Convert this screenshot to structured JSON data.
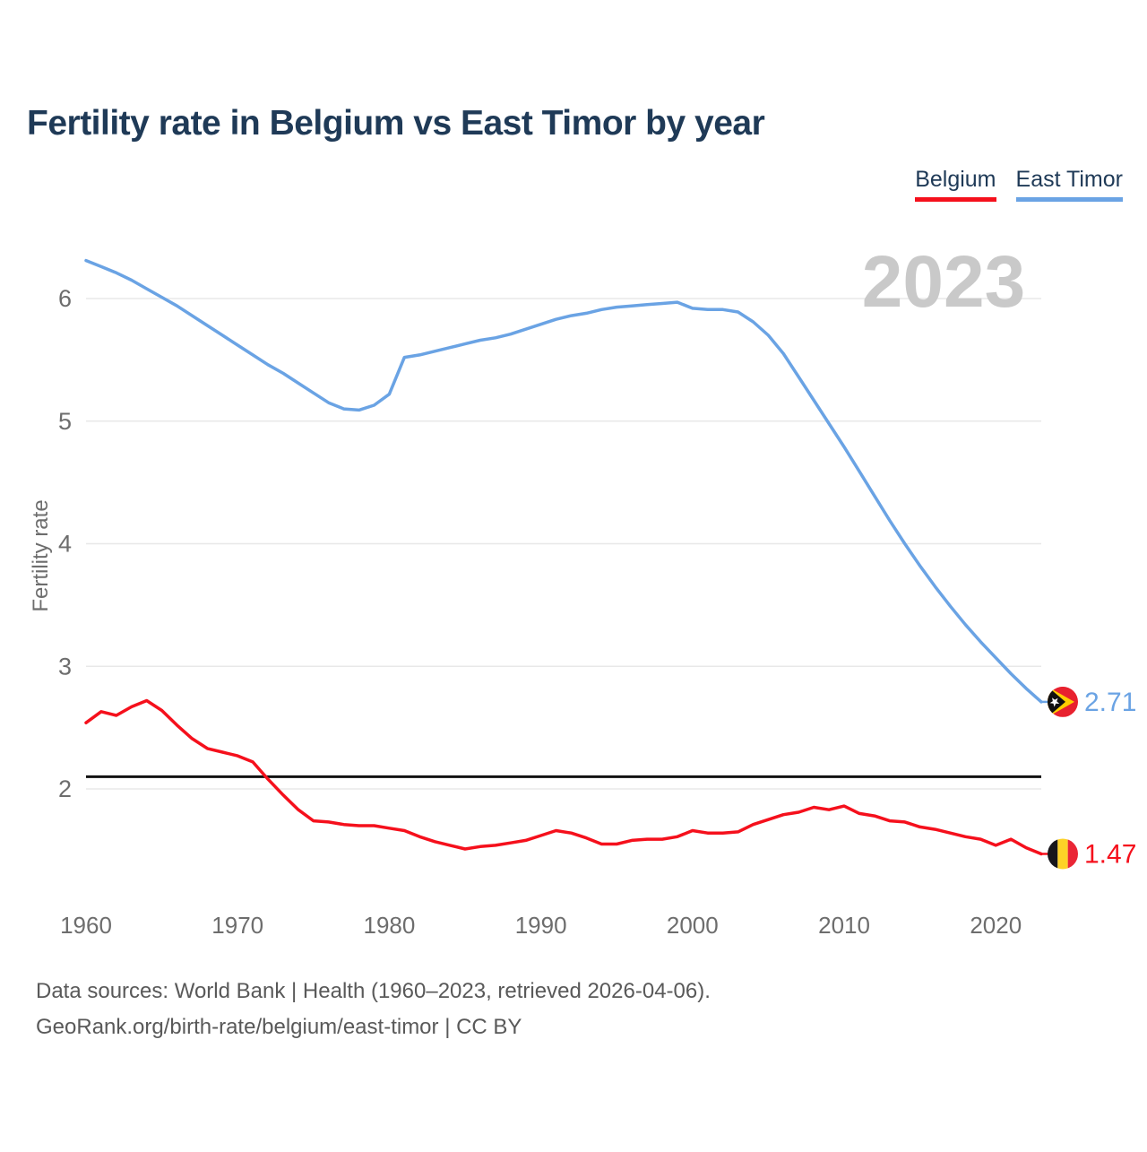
{
  "header": {
    "title": "Fertility rate in Belgium vs East Timor by year",
    "title_color": "#1f3a57"
  },
  "legend": {
    "items": [
      {
        "label": "Belgium",
        "color": "#f5101c"
      },
      {
        "label": "East Timor",
        "color": "#6aa3e4"
      }
    ]
  },
  "watermark": "2023",
  "chart_data": {
    "type": "line",
    "title": "Fertility rate in Belgium vs East Timor by year",
    "xlabel": "",
    "ylabel": "Fertility rate",
    "xlim": [
      1960,
      2023
    ],
    "ylim": [
      1.3,
      6.5
    ],
    "xticks": [
      1960,
      1970,
      1980,
      1990,
      2000,
      2010,
      2020
    ],
    "yticks": [
      2,
      3,
      4,
      5,
      6
    ],
    "grid": "horizontal-only",
    "legend_position": "top-right",
    "years": [
      1960,
      1961,
      1962,
      1963,
      1964,
      1965,
      1966,
      1967,
      1968,
      1969,
      1970,
      1971,
      1972,
      1973,
      1974,
      1975,
      1976,
      1977,
      1978,
      1979,
      1980,
      1981,
      1982,
      1983,
      1984,
      1985,
      1986,
      1987,
      1988,
      1989,
      1990,
      1991,
      1992,
      1993,
      1994,
      1995,
      1996,
      1997,
      1998,
      1999,
      2000,
      2001,
      2002,
      2003,
      2004,
      2005,
      2006,
      2007,
      2008,
      2009,
      2010,
      2011,
      2012,
      2013,
      2014,
      2015,
      2016,
      2017,
      2018,
      2019,
      2020,
      2021,
      2022,
      2023
    ],
    "series": [
      {
        "name": "East Timor",
        "color": "#6aa3e4",
        "end_label": "2.71",
        "values": [
          6.31,
          6.26,
          6.21,
          6.15,
          6.08,
          6.01,
          5.94,
          5.86,
          5.78,
          5.7,
          5.62,
          5.54,
          5.46,
          5.39,
          5.31,
          5.23,
          5.15,
          5.1,
          5.09,
          5.13,
          5.22,
          5.52,
          5.54,
          5.57,
          5.6,
          5.63,
          5.66,
          5.68,
          5.71,
          5.75,
          5.79,
          5.83,
          5.86,
          5.88,
          5.91,
          5.93,
          5.94,
          5.95,
          5.96,
          5.97,
          5.92,
          5.91,
          5.91,
          5.89,
          5.81,
          5.7,
          5.55,
          5.36,
          5.17,
          4.98,
          4.79,
          4.59,
          4.39,
          4.19,
          4.0,
          3.82,
          3.65,
          3.49,
          3.34,
          3.2,
          3.07,
          2.94,
          2.82,
          2.71
        ]
      },
      {
        "name": "Belgium",
        "color": "#f5101c",
        "end_label": "1.47",
        "values": [
          2.54,
          2.63,
          2.6,
          2.67,
          2.72,
          2.64,
          2.52,
          2.41,
          2.33,
          2.3,
          2.27,
          2.22,
          2.08,
          1.95,
          1.83,
          1.74,
          1.73,
          1.71,
          1.7,
          1.7,
          1.68,
          1.66,
          1.61,
          1.57,
          1.54,
          1.51,
          1.53,
          1.54,
          1.56,
          1.58,
          1.62,
          1.66,
          1.64,
          1.6,
          1.55,
          1.55,
          1.58,
          1.59,
          1.59,
          1.61,
          1.66,
          1.64,
          1.64,
          1.65,
          1.71,
          1.75,
          1.79,
          1.81,
          1.85,
          1.83,
          1.86,
          1.8,
          1.78,
          1.74,
          1.73,
          1.69,
          1.67,
          1.64,
          1.61,
          1.59,
          1.54,
          1.59,
          1.52,
          1.47
        ]
      }
    ],
    "reference_line": {
      "value": 2.1,
      "color": "#111111"
    },
    "axis_text_color": "#6d6d6d",
    "gridline_color": "#e8e8e8",
    "watermark_color": "#c9c9c9"
  },
  "flags": {
    "east_timor": {
      "red": "#e8212e",
      "yellow": "#ffce00",
      "black": "#101010",
      "star": "#ffffff"
    },
    "belgium": {
      "black": "#17161b",
      "yellow": "#fdd227",
      "red": "#ea2636"
    }
  },
  "footer": {
    "line1": "Data sources: World Bank | Health (1960–2023, retrieved 2026-04-06).",
    "line2": "GeoRank.org/birth-rate/belgium/east-timor | CC BY"
  }
}
